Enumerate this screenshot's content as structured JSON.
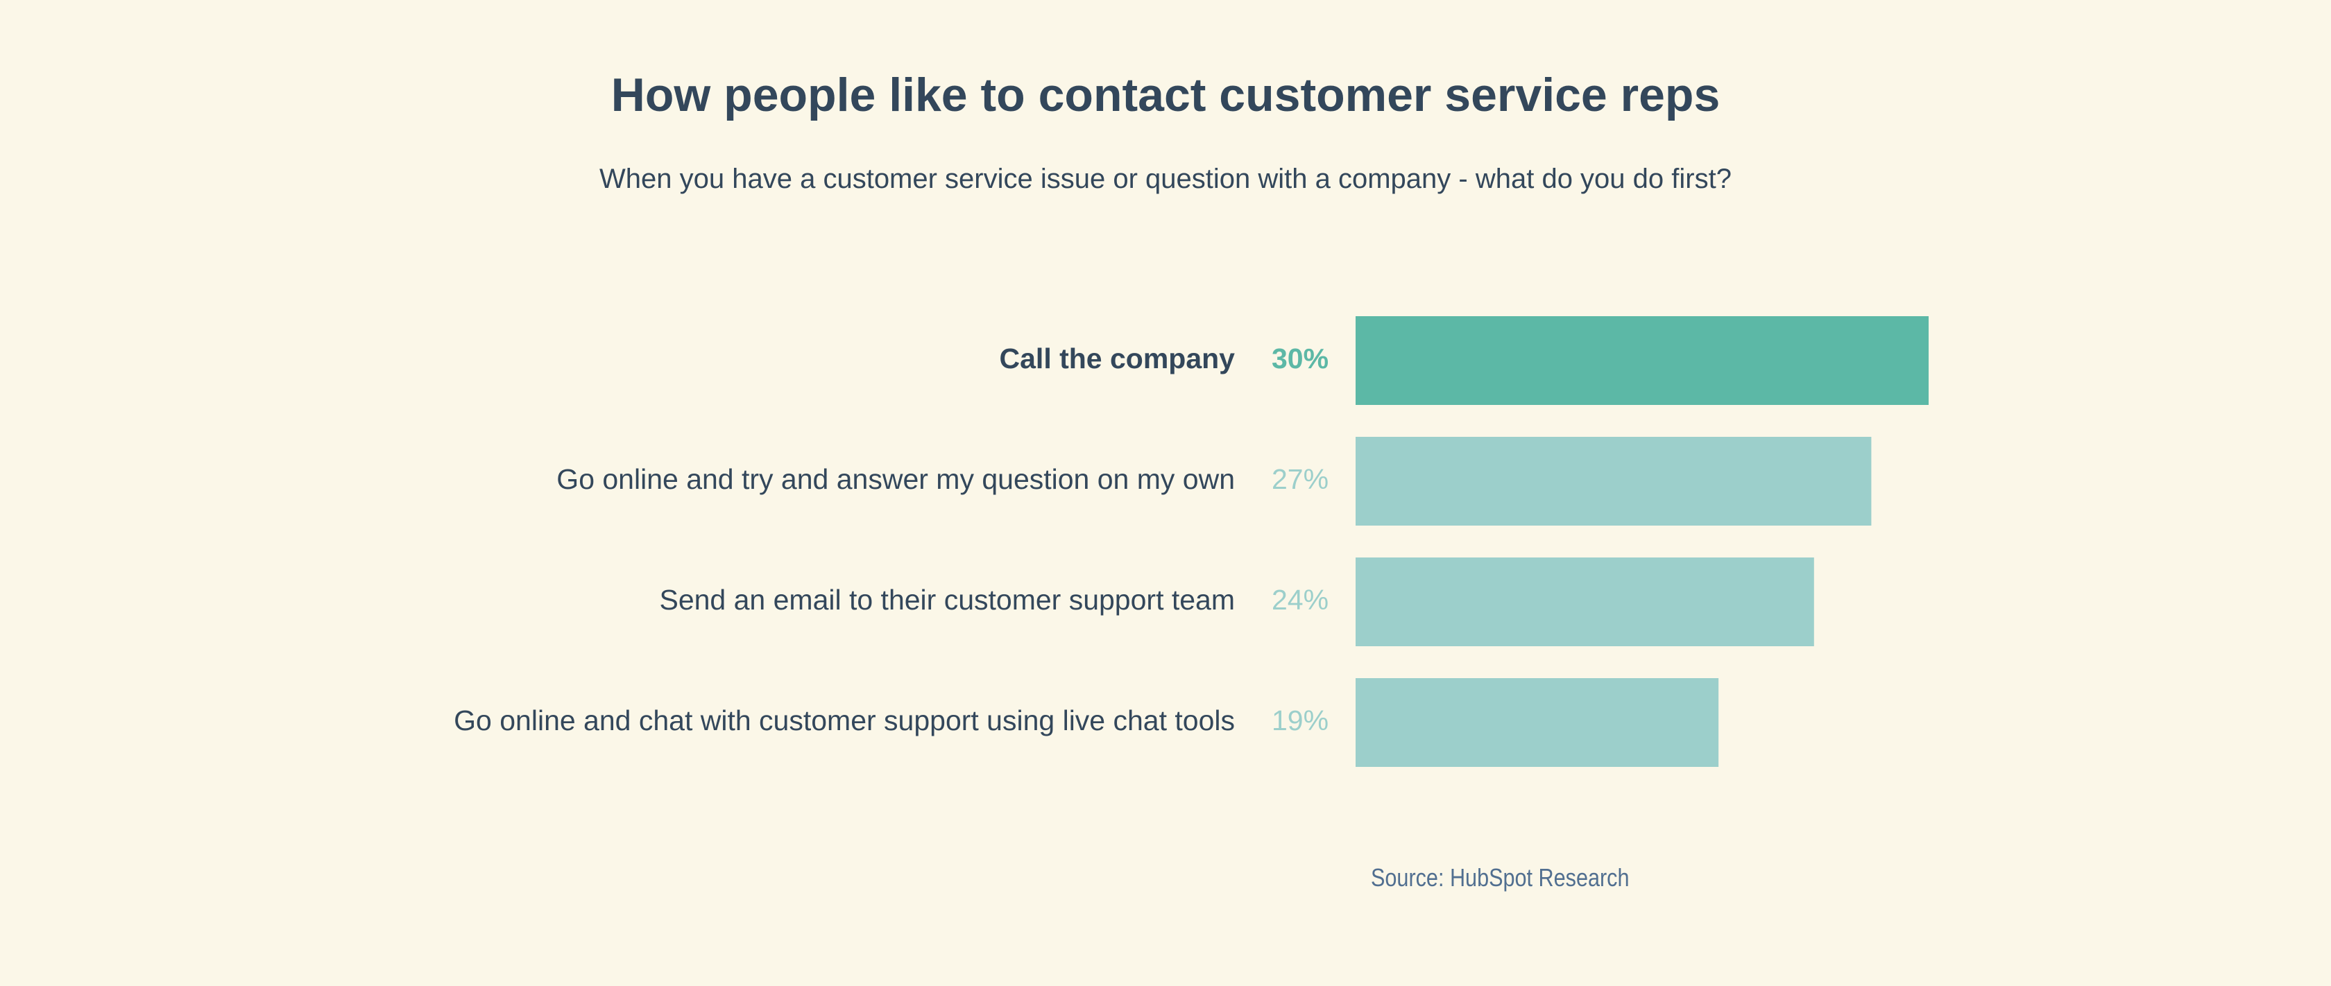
{
  "chart_data": {
    "type": "bar",
    "orientation": "horizontal",
    "title": "How people like to contact customer service reps",
    "subtitle": "When you have a customer service issue or question with a company - what do you do first?",
    "categories": [
      "Call the company",
      "Go online and try and answer my question on my own",
      "Send an email to their customer support team",
      "Go online and chat with customer support using live chat tools"
    ],
    "values": [
      30,
      27,
      24,
      19
    ],
    "value_labels": [
      "30%",
      "27%",
      "24%",
      "19%"
    ],
    "unit": "%",
    "xlim": [
      0,
      30
    ],
    "grid": false,
    "colors": {
      "highlight": "#5cb8a6",
      "bar": "#9ccfcb",
      "highlight_label": "#5cb8a6",
      "label": "#9ccfcb",
      "text": "#33475b"
    },
    "source": "Source: HubSpot Research"
  }
}
